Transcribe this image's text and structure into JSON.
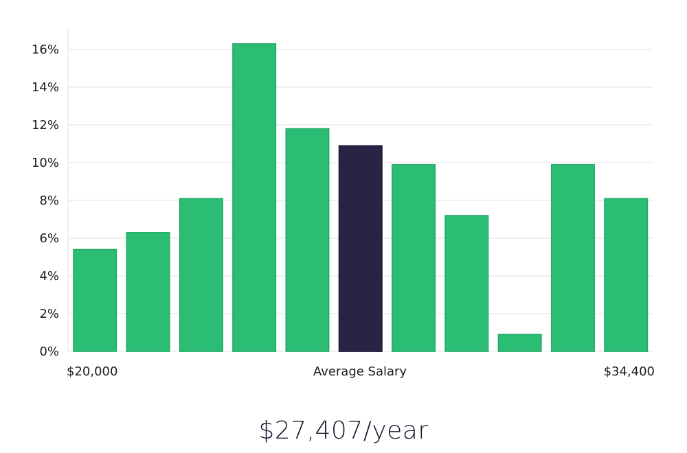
{
  "chart_data": {
    "type": "bar",
    "values": [
      5.4,
      6.3,
      8.1,
      16.3,
      11.8,
      10.9,
      9.9,
      7.2,
      0.9,
      9.9,
      8.1
    ],
    "highlight_index": 5,
    "ylim": [
      0,
      17
    ],
    "y_ticks": [
      0,
      2,
      4,
      6,
      8,
      10,
      12,
      14,
      16
    ],
    "y_tick_suffix": "%",
    "x_labels": {
      "left": "$20,000",
      "center": "Average Salary",
      "right": "$34,400"
    },
    "grid": true,
    "colors": {
      "bar": "#2bbd74",
      "highlight": "#2a2346",
      "grid": "#e2e2e2"
    }
  },
  "summary": {
    "average_salary": "$27,407/year"
  }
}
